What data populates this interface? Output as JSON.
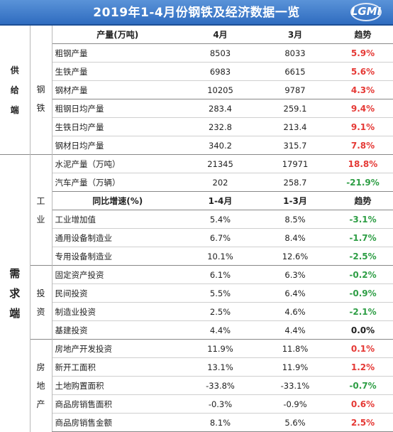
{
  "title": "2019年1-4月份钢铁及经济数据一览",
  "logo_text": "LGMI",
  "sections": {
    "supply": "供给端",
    "demand": "需求端",
    "steel": "钢铁",
    "industry": "工业",
    "investment": "投资",
    "real_estate": "房地产"
  },
  "header1": [
    "产量(万吨)",
    "4月",
    "3月",
    "趋势"
  ],
  "header2": [
    "同比增速(%)",
    "1-4月",
    "1-3月",
    "趋势"
  ],
  "steel_rows": [
    {
      "label": "粗钢产量",
      "a": "8503",
      "b": "8033",
      "t": "5.9%",
      "dir": "pos"
    },
    {
      "label": "生铁产量",
      "a": "6983",
      "b": "6615",
      "t": "5.6%",
      "dir": "pos"
    },
    {
      "label": "钢材产量",
      "a": "10205",
      "b": "9787",
      "t": "4.3%",
      "dir": "pos"
    },
    {
      "label": "粗钢日均产量",
      "a": "283.4",
      "b": "259.1",
      "t": "9.4%",
      "dir": "pos"
    },
    {
      "label": "生铁日均产量",
      "a": "232.8",
      "b": "213.4",
      "t": "9.1%",
      "dir": "pos"
    },
    {
      "label": "钢材日均产量",
      "a": "340.2",
      "b": "315.7",
      "t": "7.8%",
      "dir": "pos"
    }
  ],
  "industry_top": [
    {
      "label": "水泥产量（万吨）",
      "a": "21345",
      "b": "17971",
      "t": "18.8%",
      "dir": "pos"
    },
    {
      "label": "汽车产量（万辆）",
      "a": "202",
      "b": "258.7",
      "t": "-21.9%",
      "dir": "neg"
    }
  ],
  "industry_rows": [
    {
      "label": "工业增加值",
      "a": "5.4%",
      "b": "8.5%",
      "t": "-3.1%",
      "dir": "neg"
    },
    {
      "label": "通用设备制造业",
      "a": "6.7%",
      "b": "8.4%",
      "t": "-1.7%",
      "dir": "neg"
    },
    {
      "label": "专用设备制造业",
      "a": "10.1%",
      "b": "12.6%",
      "t": "-2.5%",
      "dir": "neg"
    }
  ],
  "investment_rows": [
    {
      "label": "固定资产投资",
      "a": "6.1%",
      "b": "6.3%",
      "t": "-0.2%",
      "dir": "neg"
    },
    {
      "label": "民间投资",
      "a": "5.5%",
      "b": "6.4%",
      "t": "-0.9%",
      "dir": "neg"
    },
    {
      "label": "制造业投资",
      "a": "2.5%",
      "b": "4.6%",
      "t": "-2.1%",
      "dir": "neg"
    },
    {
      "label": "基建投资",
      "a": "4.4%",
      "b": "4.4%",
      "t": "0.0%",
      "dir": "zero"
    }
  ],
  "real_estate_rows": [
    {
      "label": "房地产开发投资",
      "a": "11.9%",
      "b": "11.8%",
      "t": "0.1%",
      "dir": "pos"
    },
    {
      "label": "新开工面积",
      "a": "13.1%",
      "b": "11.9%",
      "t": "1.2%",
      "dir": "pos"
    },
    {
      "label": "土地购置面积",
      "a": "-33.8%",
      "b": "-33.1%",
      "t": "-0.7%",
      "dir": "neg"
    },
    {
      "label": "商品房销售面积",
      "a": "-0.3%",
      "b": "-0.9%",
      "t": "0.6%",
      "dir": "pos"
    },
    {
      "label": "商品房销售金额",
      "a": "8.1%",
      "b": "5.6%",
      "t": "2.5%",
      "dir": "pos"
    }
  ],
  "colors": {
    "banner": "#3a78c9",
    "positive": "#e53935",
    "negative": "#2e9e45"
  }
}
